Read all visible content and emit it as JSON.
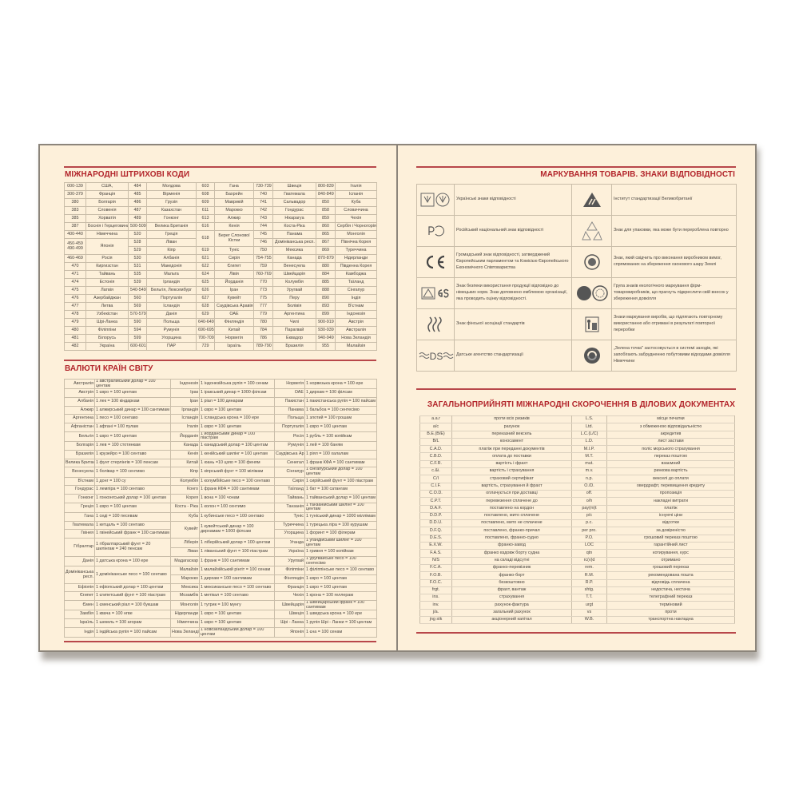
{
  "barcodes": {
    "title": "МІЖНАРОДНІ ШТРИХОВІ КОДИ",
    "rows": [
      [
        "000-139",
        "США,",
        "484",
        "Молдова",
        "603",
        "Гана",
        "730-739",
        "Швеція",
        "800-839",
        "Італія"
      ],
      [
        "300-379",
        "Франція",
        "485",
        "Вірменія",
        "608",
        "Бахрейн",
        "740",
        "Гватемала",
        "840-849",
        "Іспанія"
      ],
      [
        "380",
        "Болгарія",
        "486",
        "Грузія",
        "609",
        "Маврикій",
        "741",
        "Сальвадор",
        "850",
        "Куба"
      ],
      [
        "383",
        "Словенія",
        "487",
        "Казахстан",
        "611",
        "Марокко",
        "742",
        "Гондурас",
        "858",
        "Словаччина"
      ],
      [
        "385",
        "Хорватія",
        "489",
        "Гонконг",
        "613",
        "Алжир",
        "743",
        "Нікарагуа",
        "859",
        "Чехія"
      ],
      [
        "387",
        "Боснія і Герцеговина",
        "500-509",
        "Велика Британія",
        "616",
        "Кенія",
        "744",
        "Коста-Ріка",
        "860",
        "Сербія і Чорногорія"
      ],
      [
        "400-440",
        "Німеччина",
        "520",
        "Греція",
        "618",
        "Берег Слонової Кістки",
        "745",
        "Панама",
        "865",
        "Монголія"
      ],
      [
        "450-459 490-499",
        "Японія",
        "528",
        "Ліван",
        null,
        null,
        "746",
        "Домініканська респ.",
        "867",
        "Північна Корея"
      ],
      [
        null,
        null,
        "529",
        "Кіпр",
        "619",
        "Туніс",
        "750",
        "Мексика",
        "869",
        "Туреччина"
      ],
      [
        "460-469",
        "Росія",
        "530",
        "Албанія",
        "621",
        "Сирія",
        "754-755",
        "Канада",
        "870-879",
        "Нідерланди"
      ],
      [
        "470",
        "Киргизстан",
        "531",
        "Македонія",
        "622",
        "Єгипет",
        "759",
        "Венесуела",
        "880",
        "Південна Корея"
      ],
      [
        "471",
        "Тайвань",
        "535",
        "Мальта",
        "624",
        "Лівія",
        "760-769",
        "Швейцарія",
        "884",
        "Камбоджа"
      ],
      [
        "474",
        "Естонія",
        "539",
        "Ірландія",
        "625",
        "Йорданія",
        "770",
        "Колумбія",
        "885",
        "Таїланд"
      ],
      [
        "475",
        "Латвія",
        "540-549",
        "Бельгія, Люксембург",
        "626",
        "Іран",
        "773",
        "Уругвай",
        "888",
        "Сінгапур"
      ],
      [
        "476",
        "Азербайджан",
        "560",
        "Португалія",
        "627",
        "Кувейт",
        "775",
        "Перу",
        "890",
        "Індія"
      ],
      [
        "477",
        "Литва",
        "569",
        "Ісландія",
        "628",
        "Саудівська Аравія",
        "777",
        "Болівія",
        "893",
        "В'єтнам"
      ],
      [
        "478",
        "Узбекістан",
        "570-579",
        "Данія",
        "629",
        "ОАЕ",
        "779",
        "Аргентина",
        "899",
        "Індонезія"
      ],
      [
        "479",
        "Шрі-Ланка",
        "590",
        "Польща",
        "640-649",
        "Фінляндія",
        "780",
        "Чилі",
        "900-919",
        "Австрія"
      ],
      [
        "480",
        "Філіппіни",
        "594",
        "Румунія",
        "690-695",
        "Китай",
        "784",
        "Парагвай",
        "930-939",
        "Австралія"
      ],
      [
        "481",
        "Білорусь",
        "599",
        "Угорщина",
        "700-709",
        "Норвегія",
        "786",
        "Еквадор",
        "940-949",
        "Нова Зеландія"
      ],
      [
        "482",
        "Україна",
        "600-601",
        "ПАР",
        "729",
        "Ізраїль",
        "789-790",
        "Бразилія",
        "955",
        "Малайзія"
      ]
    ]
  },
  "currencies": {
    "title": "ВАЛЮТИ КРАЇН СВІТУ",
    "columns": [
      [
        [
          "Австралія",
          "1 австралійський долар = 100 центам"
        ],
        [
          "Австрія",
          "1 євро = 100 центам"
        ],
        [
          "Албанія",
          "1 лек = 100 кіндаркам"
        ],
        [
          "Алжир",
          "1 алжирський динар = 100 сантимам"
        ],
        [
          "Аргентина",
          "1 песо = 100 сентаво"
        ],
        [
          "Афганістан",
          "1 афгані = 100 пулам"
        ],
        [
          "Бельгія",
          "1 євро = 100 центам"
        ],
        [
          "Болгарія",
          "1 лев = 100 стотинкам"
        ],
        [
          "Бразилія",
          "1 крузейро = 100 сентаво"
        ],
        [
          "Велика Британія",
          "1 фунт стерлінгів = 100 пенсам"
        ],
        [
          "Венесуела",
          "1 болівар = 100 сентимо"
        ],
        [
          "В'єтнам",
          "1 донг = 100 су"
        ],
        [
          "Гондурас",
          "1 лемпіра = 100 сентаво"
        ],
        [
          "Гонконг",
          "1 гонконгський долар = 100 центам"
        ],
        [
          "Греція",
          "1 євро = 100 центам"
        ],
        [
          "Гана",
          "1 седі = 100 песевам"
        ],
        [
          "Гватемала",
          "1 кетцаль = 100 сентаво"
        ],
        [
          "Гвінея",
          "1 гвінейський франк = 100 сантимам"
        ],
        [
          "Гібралтар",
          "1 гібралтарський фунт = 20 шилінгам = 240 пенсам"
        ],
        null,
        [
          "Данія",
          "1 датська крона = 100 ере"
        ],
        [
          "Домініканська респ.",
          "1 домініканське песо = 100 сентаво"
        ],
        null,
        [
          "Ефіопія",
          "1 ефіопський долар = 100 центам"
        ],
        [
          "Єгипет",
          "1 єгипетський фунт = 100 піастрам"
        ],
        [
          "Ємен",
          "1 єменський ріал = 100 букшам"
        ],
        [
          "Замбія",
          "1 квача = 100 нгве"
        ],
        [
          "Ізраїль",
          "1 шекель = 100 агорам"
        ],
        [
          "Індія",
          "1 індійська рупія = 100 пайсам"
        ]
      ],
      [
        [
          "Індонезія",
          "1 індонезійська рупія = 100 сенам"
        ],
        [
          "Ірак",
          "1 іракський динар = 1000 філсам"
        ],
        [
          "Іран",
          "1 ріал = 100 динарам"
        ],
        [
          "Ірландія",
          "1 євро = 100 центам"
        ],
        [
          "Ісландія",
          "1 ісландська крона = 100 ере"
        ],
        [
          "Італія",
          "1 євро = 100 центам"
        ],
        [
          "Йорданія",
          "1 йорданський динар = 100 піастрам"
        ],
        [
          "Канада",
          "1 канадський долар = 100 центам"
        ],
        [
          "Кенія",
          "1 кенійський шилінг = 100 центам"
        ],
        [
          "Китай",
          "1 юань =10 цзяо = 100 феням"
        ],
        [
          "Кіпр",
          "1 кіпрський фунт = 100 мілімам"
        ],
        [
          "Колумбія",
          "1 колумбійське песо = 100 сентаво"
        ],
        [
          "Конго",
          "1 франк КФА = 100 сантимам"
        ],
        [
          "Корея",
          "1 вона = 100 чонам"
        ],
        [
          "Коста - Ріка",
          "1 колон = 100 сентимо"
        ],
        [
          "Куба",
          "1 кубинське песо = 100 сентаво"
        ],
        [
          "Кувейт",
          "1 кувейтський динар = 100 дирхамам = 1000 філсам"
        ],
        null,
        [
          "Ліберія",
          "1 ліберійський долар = 100 центам"
        ],
        [
          "Ліван",
          "1 ліванський фунт = 100 піастрам"
        ],
        [
          "Мадагаскар",
          "1 франк = 100 сантимам"
        ],
        [
          "Малайзія",
          "1 малайзійський рінгіт = 100 сенам"
        ],
        [
          "Марокко",
          "1 дирхам = 100 сантимам"
        ],
        [
          "Мексика",
          "1 мексиканське песо = 100 сентаво"
        ],
        [
          "Мозамбік",
          "1 метікал = 100 сентаво"
        ],
        [
          "Монголія",
          "1 тугрик = 100 мунгу"
        ],
        [
          "Нідерланди",
          "1 євро = 100 центам"
        ],
        [
          "Німеччина",
          "1 євро = 100 центам"
        ],
        [
          "Нова Зеландія",
          "1 новозеландський долар = 100 центам"
        ]
      ],
      [
        [
          "Норвегія",
          "1 норвезька крона = 100 ере"
        ],
        [
          "ОАЕ",
          "1 дирхам = 100 філсам"
        ],
        [
          "Пакистан",
          "1 пакистанська рупія = 100 пайсам"
        ],
        [
          "Панама",
          "1 бальбоа = 100 сентесімо"
        ],
        [
          "Польща",
          "1 злотий = 100 грошам"
        ],
        [
          "Португалія",
          "1 євро = 100 центам"
        ],
        [
          "Росія",
          "1 рубль = 100 копійкам"
        ],
        [
          "Румунія",
          "1 лей = 100 баням"
        ],
        [
          "Саудівська Аравія",
          "1 ріял = 100 халалам"
        ],
        [
          "Сенегал",
          "1 франк КФА = 100 сантимам"
        ],
        [
          "Сінгапур",
          "1 сінгапурський долар = 100 центам"
        ],
        [
          "Сирія",
          "1 сирійський фунт = 100 піастрам"
        ],
        [
          "Таїланд",
          "1 бат = 100 сатангам"
        ],
        [
          "Тайвань",
          "1 тайванський долар = 100 центам"
        ],
        [
          "Танзанія",
          "1 танзанійський шилінг = 100 центам"
        ],
        [
          "Туніс",
          "1 туніський динар = 1000 міллімам"
        ],
        [
          "Туреччина",
          "1 турецька ліра = 100 курушам"
        ],
        [
          "Угорщина",
          "1 форинт = 100 філерам"
        ],
        [
          "Уганда",
          "1 угандійський шилінг = 100 центам"
        ],
        [
          "Україна",
          "1 гривня = 100 копійкам"
        ],
        [
          "Уругвай",
          "1 уругвайське песо = 100 сентесімо"
        ],
        [
          "Філіппіни",
          "1 філіппінське песо = 100 сентаво"
        ],
        [
          "Фінляндія",
          "1 євро = 100 центам"
        ],
        [
          "Франція",
          "1 євро = 100 центам"
        ],
        [
          "Чехія",
          "1 крона = 100 геллерам"
        ],
        [
          "Швейцарія",
          "1 швейцарський франк = 100 сантимам"
        ],
        [
          "Швеція",
          "1 шведська крона = 100 ере"
        ],
        [
          "Шрі - Ланка",
          "1 рупія Шрі - Ланки = 100 центам"
        ],
        [
          "Японія",
          "1 єна = 100 сенам"
        ]
      ]
    ]
  },
  "marking": {
    "title": "МАРКУВАННЯ ТОВАРІВ. ЗНАКИ ВІДПОВІДНОСТІ",
    "rows": [
      [
        {
          "icon": "ukrainian-conformity-marks-icon",
          "text": "Українські знаки відповідності"
        },
        {
          "icon": "bsi-kitemark-icon",
          "text": "Інститут стандартизації Великобританії"
        }
      ],
      [
        {
          "icon": "russian-conformity-mark-icon",
          "text": "Російський національний знак відповідності"
        },
        {
          "icon": "recycle-icon",
          "text": "Знак для упаковки, яка може бути перероблена повторно"
        }
      ],
      [
        {
          "icon": "ce-mark-icon",
          "text": "Громадський знак відповідності, затверджений Європейським парламентом та Комісією Європейського Економічного Співтовариства"
        },
        {
          "icon": "ozone-globe-icon",
          "text": "Знак, який свідчить про виконання виробником вимог, спрямованих на збереження озонового шару Землі"
        }
      ],
      [
        {
          "icon": "gs-safety-mark-icon",
          "text": "Знак безпеки використання продукції відповідно до німецьких норм. Знак доповнено емблемою організації, яка проводить оцінку відповідності."
        },
        {
          "icon": "eco-labels-icon",
          "text": "Група знаків екологічного маркування фірм-товаровиробників, що прагнуть підкреслити свій внесок у збереження довкілля"
        }
      ],
      [
        {
          "icon": "finnish-standards-icon",
          "text": "Знак фінської асоціації стандартів"
        },
        {
          "icon": "recyclable-bin-icon",
          "text": "Знаки маркування виробів, що підлягають повторному використанню або отримані в результаті повторної переробки"
        }
      ],
      [
        {
          "icon": "ds-mark-icon",
          "text": "Датське агентство стандартизації",
          "label": "DS"
        },
        {
          "icon": "green-dot-icon",
          "text": "„Зелена точка\" застосовується в системі заходів, які запобігають забрудненню побутовими відходами довкілля Німеччини"
        }
      ]
    ]
  },
  "abbreviations": {
    "title": "ЗАГАЛЬНОПРИЙНЯТІ МІЖНАРОДНІ СКОРОЧЕННЯ В ДІЛОВИХ ДОКУМЕНТАХ",
    "left": [
      [
        "a.a.r",
        "проти всіх ризиків"
      ],
      [
        "a/c",
        "рахунок"
      ],
      [
        "B.E.(B/E)",
        "переказний вексель"
      ],
      [
        "B/L",
        "коносамент"
      ],
      [
        "C.A.D.",
        "платіж при переданні документів"
      ],
      [
        "C.B.D.",
        "оплата до поставки"
      ],
      [
        "C.F.R.",
        "вартість і фрахт"
      ],
      [
        "c.&i.",
        "вартість і страхування"
      ],
      [
        "C/I",
        "страховий сертифікат"
      ],
      [
        "C.I.F.",
        "вартість, страхування й фрахт"
      ],
      [
        "C.O.D.",
        "оплачується при доставці"
      ],
      [
        "C.P.T.",
        "перевезення сплачене до"
      ],
      [
        "D.A.F.",
        "поставлено на кордон"
      ],
      [
        "D.D.P.",
        "поставлено, мито сплачене"
      ],
      [
        "D.D.U.",
        "поставлено, мито не сплачене"
      ],
      [
        "D.F.Q.",
        "поставлено, франко-причал"
      ],
      [
        "D.E.S.",
        "поставлено, франко-судно"
      ],
      [
        "E.X.W.",
        "франко-завод"
      ],
      [
        "F.A.S.",
        "франко вздовж борту судна"
      ],
      [
        "N/S",
        "на складі відсутні"
      ],
      [
        "F.C.A.",
        "франко-перевізник"
      ],
      [
        "F.O.B.",
        "франко-борт"
      ],
      [
        "F.O.C.",
        "безкоштовно"
      ],
      [
        "frgt.",
        "фрахт, вантаж"
      ],
      [
        "ins.",
        "страхування"
      ],
      [
        "inv.",
        "рахунок-фактура"
      ],
      [
        "j/a.",
        "загальний рахунок"
      ],
      [
        "jng stk",
        "акціонерний капітал"
      ]
    ],
    "right": [
      [
        "L.S.",
        "місце печатки"
      ],
      [
        "Ltd.",
        "з обмеженою відповідальністю"
      ],
      [
        "L.C.(L/C)",
        "акредитив"
      ],
      [
        "L.D.",
        "лист застави"
      ],
      [
        "M.I.P.",
        "поліс морського страхування"
      ],
      [
        "M.T.",
        "переказ поштою"
      ],
      [
        "mut.",
        "взаємний"
      ],
      [
        "m.v.",
        "ринкова вартість"
      ],
      [
        "n.p.",
        "векселі до оплати"
      ],
      [
        "O./D.",
        "овердрафт, перевищення кредиту"
      ],
      [
        "off.",
        "пропозиція"
      ],
      [
        "o/h",
        "накладні витрати"
      ],
      [
        "pay(m)t",
        "платіж"
      ],
      [
        "p/c",
        "існуючі ціни"
      ],
      [
        "p.c.",
        "відсотки"
      ],
      [
        "per pro.",
        "за довіреністю"
      ],
      [
        "P.O.",
        "грошовий переказ поштою"
      ],
      [
        "LOC",
        "гарантійний лист"
      ],
      [
        "qtn",
        "котирування, курс"
      ],
      [
        "rc(v)d",
        "отримано"
      ],
      [
        "rem.",
        "грошовий переказ"
      ],
      [
        "R.M.",
        "рекомендована пошта"
      ],
      [
        "R.P.",
        "відповідь сплачена"
      ],
      [
        "shtg.",
        "недостача, нестача"
      ],
      [
        "T.T.",
        "телеграфний переказ"
      ],
      [
        "urgt",
        "терміновий"
      ],
      [
        "vs",
        "проти"
      ],
      [
        "W.B.",
        "транспортна накладна"
      ]
    ]
  },
  "colors": {
    "accent": "#b3262c",
    "page": "#fdf0da",
    "rule": "#b8474a"
  }
}
